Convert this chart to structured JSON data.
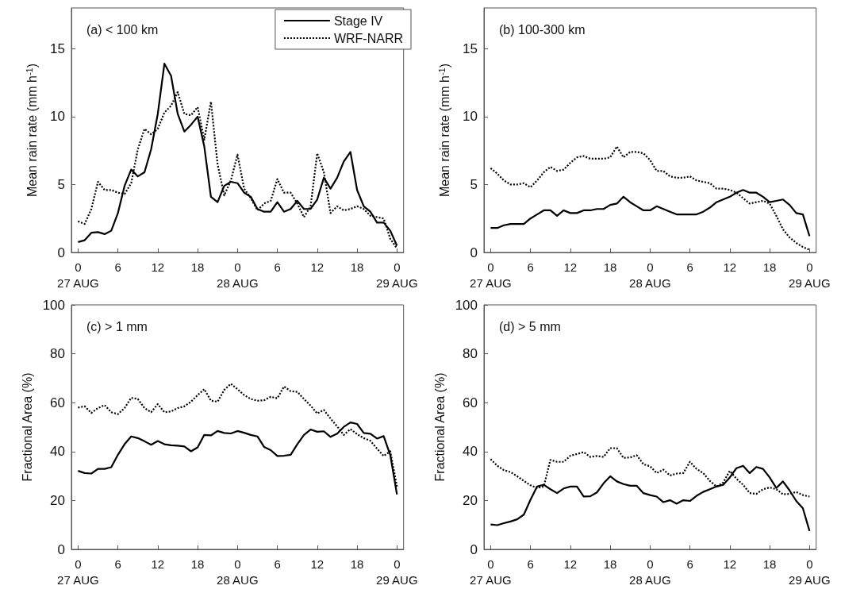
{
  "chart_data": [
    {
      "type": "line",
      "title": "(a) < 100 km",
      "ylabel": "Mean rain rate (mm h$^{-1}$)",
      "legend": "top right",
      "xlim": [
        "--08-26T23:00",
        "--08-29T01:00"
      ],
      "ylim": [
        0,
        18
      ],
      "yticks": [
        0,
        5,
        10,
        15
      ],
      "xticks": [
        {
          "value": "--08-27T00:00",
          "label": "0\n27 AUG"
        },
        {
          "value": "--08-27T06:00",
          "label": "6"
        },
        {
          "value": "--08-27T12:00",
          "label": "12"
        },
        {
          "value": "--08-27T18:00",
          "label": "18"
        },
        {
          "value": "--08-28T00:00",
          "label": "0\n28 AUG"
        },
        {
          "value": "--08-28T06:00",
          "label": "6"
        },
        {
          "value": "--08-28T12:00",
          "label": "12"
        },
        {
          "value": "--08-28T18:00",
          "label": "18"
        },
        {
          "value": "--08-29T00:00",
          "label": "0\n29 AUG"
        }
      ],
      "x": [
        "--08-27T00:00",
        "--08-27T01:00",
        "--08-27T02:00",
        "--08-27T03:00",
        "--08-27T04:00",
        "--08-27T05:00",
        "--08-27T06:00",
        "--08-27T07:00",
        "--08-27T08:00",
        "--08-27T09:00",
        "--08-27T10:00",
        "--08-27T11:00",
        "--08-27T12:00",
        "--08-27T13:00",
        "--08-27T14:00",
        "--08-27T15:00",
        "--08-27T16:00",
        "--08-27T17:00",
        "--08-27T18:00",
        "--08-27T19:00",
        "--08-27T20:00",
        "--08-27T21:00",
        "--08-27T22:00",
        "--08-27T23:00",
        "--08-28T00:00",
        "--08-28T01:00",
        "--08-28T02:00",
        "--08-28T03:00",
        "--08-28T04:00",
        "--08-28T05:00",
        "--08-28T06:00",
        "--08-28T07:00",
        "--08-28T08:00",
        "--08-28T09:00",
        "--08-28T10:00",
        "--08-28T11:00",
        "--08-28T12:00",
        "--08-28T13:00",
        "--08-28T14:00",
        "--08-28T15:00",
        "--08-28T16:00",
        "--08-28T17:00",
        "--08-28T18:00",
        "--08-28T19:00",
        "--08-28T20:00",
        "--08-28T21:00",
        "--08-28T22:00",
        "--08-28T23:00",
        "--08-29T00:00"
      ],
      "series": [
        {
          "name": "Stage IV",
          "color": "#000000",
          "line_style": "solid",
          "values": [
            0.77,
            0.9,
            1.45,
            1.5,
            1.35,
            1.6,
            2.9,
            4.9,
            6.1,
            5.6,
            5.9,
            7.6,
            10.2,
            13.9,
            13.0,
            10.2,
            8.9,
            9.4,
            10.0,
            7.8,
            4.1,
            3.7,
            4.9,
            5.2,
            5.1,
            4.4,
            4.1,
            3.2,
            3.0,
            3.0,
            3.7,
            3.0,
            3.2,
            3.8,
            3.2,
            3.2,
            3.9,
            5.5,
            4.7,
            5.5,
            6.7,
            7.4,
            4.6,
            3.4,
            3.0,
            2.2,
            2.2,
            1.6,
            0.5
          ]
        },
        {
          "name": "WRF-NARR",
          "color": "#000000",
          "line_style": "dotted",
          "values": [
            2.3,
            2.1,
            3.2,
            5.2,
            4.6,
            4.6,
            4.4,
            4.3,
            5.1,
            7.6,
            9.1,
            8.7,
            9.1,
            10.3,
            10.8,
            11.8,
            10.2,
            10.1,
            10.7,
            8.3,
            11.1,
            6.5,
            4.2,
            5.3,
            7.2,
            4.7,
            4.0,
            3.1,
            3.6,
            3.8,
            5.4,
            4.4,
            4.4,
            3.6,
            2.6,
            3.4,
            7.3,
            5.9,
            2.9,
            3.4,
            3.1,
            3.2,
            3.4,
            3.2,
            2.7,
            2.6,
            2.5,
            1.0,
            0.3
          ]
        }
      ]
    },
    {
      "type": "line",
      "title": "(b) 100-300 km",
      "ylabel": "Mean rain rate (mm h$^{-1}$)",
      "xlim": [
        "--08-26T23:00",
        "--08-29T01:00"
      ],
      "ylim": [
        0,
        18
      ],
      "yticks": [
        0,
        5,
        10,
        15
      ],
      "xticks": [
        {
          "value": "--08-27T00:00",
          "label": "0\n27 AUG"
        },
        {
          "value": "--08-27T06:00",
          "label": "6"
        },
        {
          "value": "--08-27T12:00",
          "label": "12"
        },
        {
          "value": "--08-27T18:00",
          "label": "18"
        },
        {
          "value": "--08-28T00:00",
          "label": "0\n28 AUG"
        },
        {
          "value": "--08-28T06:00",
          "label": "6"
        },
        {
          "value": "--08-28T12:00",
          "label": "12"
        },
        {
          "value": "--08-28T18:00",
          "label": "18"
        },
        {
          "value": "--08-29T00:00",
          "label": "0\n29 AUG"
        }
      ],
      "x": [
        "--08-27T00:00",
        "--08-27T01:00",
        "--08-27T02:00",
        "--08-27T03:00",
        "--08-27T04:00",
        "--08-27T05:00",
        "--08-27T06:00",
        "--08-27T07:00",
        "--08-27T08:00",
        "--08-27T09:00",
        "--08-27T10:00",
        "--08-27T11:00",
        "--08-27T12:00",
        "--08-27T13:00",
        "--08-27T14:00",
        "--08-27T15:00",
        "--08-27T16:00",
        "--08-27T17:00",
        "--08-27T18:00",
        "--08-27T19:00",
        "--08-27T20:00",
        "--08-27T21:00",
        "--08-27T22:00",
        "--08-27T23:00",
        "--08-28T00:00",
        "--08-28T01:00",
        "--08-28T02:00",
        "--08-28T03:00",
        "--08-28T04:00",
        "--08-28T05:00",
        "--08-28T06:00",
        "--08-28T07:00",
        "--08-28T08:00",
        "--08-28T09:00",
        "--08-28T10:00",
        "--08-28T11:00",
        "--08-28T12:00",
        "--08-28T13:00",
        "--08-28T14:00",
        "--08-28T15:00",
        "--08-28T16:00",
        "--08-28T17:00",
        "--08-28T18:00",
        "--08-28T19:00",
        "--08-28T20:00",
        "--08-28T21:00",
        "--08-28T22:00",
        "--08-28T23:00",
        "--08-29T00:00"
      ],
      "series": [
        {
          "color": "#000000",
          "line_style": "solid",
          "values": [
            1.8,
            1.8,
            2.0,
            2.1,
            2.1,
            2.1,
            2.5,
            2.8,
            3.1,
            3.1,
            2.7,
            3.1,
            2.9,
            2.9,
            3.1,
            3.1,
            3.2,
            3.2,
            3.5,
            3.6,
            4.1,
            3.7,
            3.4,
            3.1,
            3.1,
            3.4,
            3.2,
            3.0,
            2.8,
            2.8,
            2.8,
            2.8,
            3.0,
            3.3,
            3.7,
            3.9,
            4.1,
            4.4,
            4.6,
            4.4,
            4.4,
            4.1,
            3.7,
            3.8,
            3.9,
            3.5,
            2.9,
            2.8,
            1.2
          ]
        },
        {
          "color": "#000000",
          "line_style": "dotted",
          "values": [
            6.2,
            5.8,
            5.3,
            5.0,
            5.0,
            5.1,
            4.8,
            5.3,
            5.9,
            6.3,
            6.0,
            6.1,
            6.6,
            7.0,
            7.1,
            6.9,
            6.9,
            6.9,
            7.0,
            7.8,
            7.0,
            7.4,
            7.4,
            7.3,
            6.8,
            6.0,
            6.0,
            5.6,
            5.5,
            5.5,
            5.6,
            5.3,
            5.2,
            5.1,
            4.7,
            4.7,
            4.6,
            4.4,
            4.0,
            3.6,
            3.7,
            3.8,
            3.6,
            2.7,
            1.7,
            1.1,
            0.7,
            0.4,
            0.2
          ]
        }
      ]
    },
    {
      "type": "line",
      "title": "(c) > 1 mm",
      "ylabel": "Fractional Area (%)",
      "xlim": [
        "--08-26T23:00",
        "--08-29T01:00"
      ],
      "ylim": [
        0,
        100
      ],
      "yticks": [
        0,
        20,
        40,
        60,
        80,
        100
      ],
      "xticks": [
        {
          "value": "--08-27T00:00",
          "label": "0\n27 AUG"
        },
        {
          "value": "--08-27T06:00",
          "label": "6"
        },
        {
          "value": "--08-27T12:00",
          "label": "12"
        },
        {
          "value": "--08-27T18:00",
          "label": "18"
        },
        {
          "value": "--08-28T00:00",
          "label": "0\n28 AUG"
        },
        {
          "value": "--08-28T06:00",
          "label": "6"
        },
        {
          "value": "--08-28T12:00",
          "label": "12"
        },
        {
          "value": "--08-28T18:00",
          "label": "18"
        },
        {
          "value": "--08-29T00:00",
          "label": "0\n29 AUG"
        }
      ],
      "x": [
        "--08-27T00:00",
        "--08-27T01:00",
        "--08-27T02:00",
        "--08-27T03:00",
        "--08-27T04:00",
        "--08-27T05:00",
        "--08-27T06:00",
        "--08-27T07:00",
        "--08-27T08:00",
        "--08-27T09:00",
        "--08-27T10:00",
        "--08-27T11:00",
        "--08-27T12:00",
        "--08-27T13:00",
        "--08-27T14:00",
        "--08-27T15:00",
        "--08-27T16:00",
        "--08-27T17:00",
        "--08-27T18:00",
        "--08-27T19:00",
        "--08-27T20:00",
        "--08-27T21:00",
        "--08-27T22:00",
        "--08-27T23:00",
        "--08-28T00:00",
        "--08-28T01:00",
        "--08-28T02:00",
        "--08-28T03:00",
        "--08-28T04:00",
        "--08-28T05:00",
        "--08-28T06:00",
        "--08-28T07:00",
        "--08-28T08:00",
        "--08-28T09:00",
        "--08-28T10:00",
        "--08-28T11:00",
        "--08-28T12:00",
        "--08-28T13:00",
        "--08-28T14:00",
        "--08-28T15:00",
        "--08-28T16:00",
        "--08-28T17:00",
        "--08-28T18:00",
        "--08-28T19:00",
        "--08-28T20:00",
        "--08-28T21:00",
        "--08-28T22:00",
        "--08-28T23:00",
        "--08-29T00:00"
      ],
      "series": [
        {
          "color": "#000000",
          "line_style": "solid",
          "values": [
            32.1,
            31.2,
            31.0,
            32.9,
            32.9,
            33.6,
            38.7,
            43.0,
            46.2,
            45.5,
            44.2,
            42.8,
            44.3,
            43.0,
            42.6,
            42.4,
            42.1,
            40.1,
            41.7,
            46.8,
            46.6,
            48.4,
            47.6,
            47.4,
            48.4,
            47.7,
            46.8,
            46.2,
            41.9,
            40.6,
            38.2,
            38.3,
            38.7,
            43.0,
            46.8,
            49.0,
            48.1,
            48.3,
            46.0,
            47.3,
            50.1,
            51.9,
            51.3,
            47.6,
            47.3,
            45.3,
            46.3,
            38.5,
            22.5
          ]
        },
        {
          "color": "#000000",
          "line_style": "dotted",
          "values": [
            58.0,
            58.5,
            55.8,
            57.8,
            59.0,
            56.1,
            55.3,
            57.8,
            62.0,
            61.5,
            57.8,
            56.1,
            59.4,
            56.1,
            56.4,
            57.8,
            58.5,
            60.4,
            63.1,
            65.5,
            60.8,
            60.4,
            65.2,
            67.7,
            65.5,
            63.1,
            61.5,
            60.8,
            61.0,
            62.4,
            61.8,
            66.6,
            64.7,
            64.4,
            61.5,
            58.8,
            55.6,
            57.0,
            53.5,
            50.3,
            46.8,
            49.2,
            47.1,
            45.5,
            44.4,
            41.2,
            38.2,
            40.1,
            25.7
          ]
        }
      ]
    },
    {
      "type": "line",
      "title": "(d) > 5 mm",
      "ylabel": "Fractional Area (%)",
      "xlim": [
        "--08-26T23:00",
        "--08-29T01:00"
      ],
      "ylim": [
        0,
        100
      ],
      "yticks": [
        0,
        20,
        40,
        60,
        80,
        100
      ],
      "xticks": [
        {
          "value": "--08-27T00:00",
          "label": "0\n27 AUG"
        },
        {
          "value": "--08-27T06:00",
          "label": "6"
        },
        {
          "value": "--08-27T12:00",
          "label": "12"
        },
        {
          "value": "--08-27T18:00",
          "label": "18"
        },
        {
          "value": "--08-28T00:00",
          "label": "0\n28 AUG"
        },
        {
          "value": "--08-28T06:00",
          "label": "6"
        },
        {
          "value": "--08-28T12:00",
          "label": "12"
        },
        {
          "value": "--08-28T18:00",
          "label": "18"
        },
        {
          "value": "--08-29T00:00",
          "label": "0\n29 AUG"
        }
      ],
      "x": [
        "--08-27T00:00",
        "--08-27T01:00",
        "--08-27T02:00",
        "--08-27T03:00",
        "--08-27T04:00",
        "--08-27T05:00",
        "--08-27T06:00",
        "--08-27T07:00",
        "--08-27T08:00",
        "--08-27T09:00",
        "--08-27T10:00",
        "--08-27T11:00",
        "--08-27T12:00",
        "--08-27T13:00",
        "--08-27T14:00",
        "--08-27T15:00",
        "--08-27T16:00",
        "--08-27T17:00",
        "--08-27T18:00",
        "--08-27T19:00",
        "--08-27T20:00",
        "--08-27T21:00",
        "--08-27T22:00",
        "--08-27T23:00",
        "--08-28T00:00",
        "--08-28T01:00",
        "--08-28T02:00",
        "--08-28T03:00",
        "--08-28T04:00",
        "--08-28T05:00",
        "--08-28T06:00",
        "--08-28T07:00",
        "--08-28T08:00",
        "--08-28T09:00",
        "--08-28T10:00",
        "--08-28T11:00",
        "--08-28T12:00",
        "--08-28T13:00",
        "--08-28T14:00",
        "--08-28T15:00",
        "--08-28T16:00",
        "--08-28T17:00",
        "--08-28T18:00",
        "--08-28T19:00",
        "--08-28T20:00",
        "--08-28T21:00",
        "--08-28T22:00",
        "--08-28T23:00",
        "--08-29T00:00"
      ],
      "series": [
        {
          "color": "#000000",
          "line_style": "solid",
          "values": [
            10.2,
            9.9,
            10.7,
            11.4,
            12.3,
            14.2,
            20.3,
            25.7,
            26.4,
            24.6,
            23.0,
            24.9,
            25.7,
            25.7,
            21.6,
            21.7,
            23.3,
            27.0,
            29.9,
            27.8,
            26.7,
            26.0,
            26.0,
            23.0,
            22.2,
            21.6,
            19.3,
            20.1,
            18.7,
            20.1,
            19.8,
            21.9,
            23.5,
            24.6,
            25.7,
            26.4,
            29.4,
            33.2,
            34.2,
            31.2,
            33.7,
            32.9,
            29.4,
            25.1,
            27.8,
            24.1,
            19.8,
            16.8,
            7.5
          ]
        },
        {
          "color": "#000000",
          "line_style": "dotted",
          "values": [
            36.9,
            34.2,
            32.4,
            31.6,
            29.9,
            28.0,
            26.2,
            25.1,
            25.7,
            36.6,
            35.8,
            35.8,
            38.3,
            39.0,
            39.8,
            37.8,
            38.2,
            37.8,
            41.4,
            41.4,
            37.4,
            37.6,
            38.5,
            34.8,
            34.0,
            31.2,
            32.6,
            30.2,
            31.0,
            31.2,
            35.8,
            32.9,
            31.2,
            28.0,
            25.7,
            27.3,
            32.1,
            28.9,
            26.4,
            23.0,
            22.7,
            24.6,
            25.3,
            24.6,
            22.5,
            22.7,
            23.5,
            22.2,
            21.6
          ]
        }
      ]
    }
  ]
}
